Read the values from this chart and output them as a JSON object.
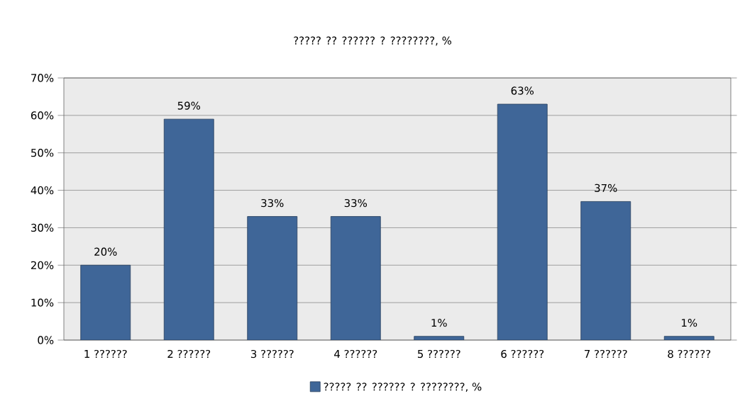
{
  "chart_data": {
    "type": "bar",
    "title": "????? ?? ?????? ? ????????, %",
    "categories": [
      "1 ??????",
      "2 ??????",
      "3 ??????",
      "4 ??????",
      "5 ??????",
      "6 ??????",
      "7 ??????",
      "8 ??????"
    ],
    "series": [
      {
        "name": "????? ?? ?????? ? ????????, %",
        "color": "#3f6698",
        "values": [
          20,
          59,
          33,
          33,
          1,
          63,
          37,
          1
        ],
        "value_labels": [
          "20%",
          "59%",
          "33%",
          "33%",
          "1%",
          "63%",
          "37%",
          "1%"
        ]
      }
    ],
    "ylim": [
      0,
      70
    ],
    "yticks": [
      {
        "value": 0,
        "label": "0%"
      },
      {
        "value": 10,
        "label": "10%"
      },
      {
        "value": 20,
        "label": "20%"
      },
      {
        "value": 30,
        "label": "30%"
      },
      {
        "value": 40,
        "label": "40%"
      },
      {
        "value": 50,
        "label": "50%"
      },
      {
        "value": 60,
        "label": "60%"
      },
      {
        "value": 70,
        "label": "70%"
      }
    ],
    "grid": "y",
    "legend": "bottom"
  }
}
